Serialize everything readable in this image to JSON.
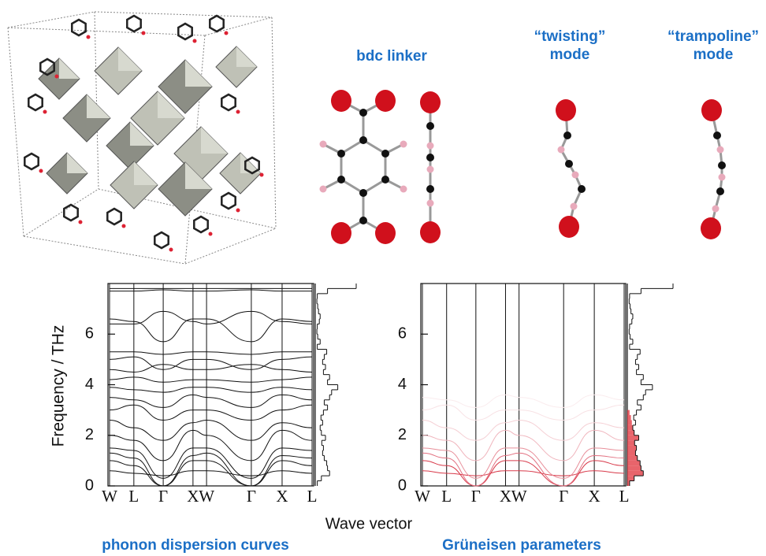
{
  "molecule_panel": {
    "linker_title": "bdc linker",
    "twisting_title": [
      "“twisting”",
      "mode"
    ],
    "trampoline_title": [
      "“trampoline”",
      "mode"
    ]
  },
  "chart_data": [
    {
      "type": "line",
      "title": "phonon dispersion curves",
      "x_label": "Wave vector",
      "y_label": "Frequency / THz",
      "categories": [
        "W",
        "L",
        "Γ",
        "X",
        "W",
        "Γ",
        "X",
        "L"
      ],
      "ylim": [
        0,
        8
      ],
      "yticks": [
        0,
        2,
        4,
        6
      ],
      "series": [
        {
          "color": "#111111",
          "values": [
            1.0,
            0.8,
            0,
            1.0,
            1.0,
            0,
            1.0,
            0.8
          ]
        },
        {
          "color": "#111111",
          "values": [
            1.3,
            1.1,
            0,
            1.2,
            1.3,
            0,
            1.2,
            1.1
          ]
        },
        {
          "color": "#111111",
          "values": [
            1.5,
            1.4,
            0.3,
            1.5,
            1.5,
            0.3,
            1.5,
            1.4
          ]
        },
        {
          "color": "#111111",
          "values": [
            0.6,
            0.5,
            0.4,
            0.6,
            0.6,
            0.4,
            0.6,
            0.5
          ]
        },
        {
          "color": "#111111",
          "values": [
            2.0,
            1.8,
            1.0,
            2.2,
            2.0,
            1.0,
            2.2,
            1.8
          ]
        },
        {
          "color": "#111111",
          "values": [
            2.6,
            2.3,
            1.8,
            2.5,
            2.6,
            1.8,
            2.5,
            2.3
          ]
        },
        {
          "color": "#111111",
          "values": [
            3.0,
            3.2,
            2.6,
            3.0,
            3.0,
            2.6,
            3.0,
            3.2
          ]
        },
        {
          "color": "#111111",
          "values": [
            3.5,
            3.4,
            3.1,
            3.6,
            3.5,
            3.1,
            3.6,
            3.4
          ]
        },
        {
          "color": "#111111",
          "values": [
            3.9,
            3.8,
            3.7,
            3.9,
            3.9,
            3.7,
            3.9,
            3.8
          ]
        },
        {
          "color": "#111111",
          "values": [
            4.2,
            4.3,
            4.1,
            4.2,
            4.2,
            4.1,
            4.2,
            4.3
          ]
        },
        {
          "color": "#111111",
          "values": [
            4.6,
            4.5,
            4.8,
            4.6,
            4.6,
            4.8,
            4.6,
            4.5
          ]
        },
        {
          "color": "#111111",
          "values": [
            5.0,
            5.1,
            4.6,
            5.0,
            5.0,
            4.6,
            5.0,
            5.1
          ]
        },
        {
          "color": "#111111",
          "values": [
            5.3,
            5.3,
            5.2,
            5.3,
            5.3,
            5.2,
            5.3,
            5.3
          ]
        },
        {
          "color": "#111111",
          "values": [
            6.6,
            6.5,
            5.7,
            6.6,
            6.6,
            5.7,
            6.6,
            6.5
          ]
        },
        {
          "color": "#111111",
          "values": [
            6.4,
            6.4,
            6.9,
            6.5,
            6.4,
            6.9,
            6.5,
            6.4
          ]
        },
        {
          "color": "#111111",
          "values": [
            7.8,
            7.8,
            7.8,
            7.8,
            7.8,
            7.8,
            7.8,
            7.8
          ]
        },
        {
          "color": "#111111",
          "values": [
            7.7,
            7.7,
            7.75,
            7.7,
            7.7,
            7.75,
            7.7,
            7.7
          ]
        }
      ],
      "dos_bins": [
        0,
        0.2,
        0.4,
        0.6,
        0.8,
        1,
        1.2,
        1.4,
        1.6,
        1.8,
        2,
        2.2,
        2.4,
        2.6,
        2.8,
        3,
        3.2,
        3.4,
        3.6,
        3.8,
        4,
        4.2,
        4.4,
        4.6,
        4.8,
        5,
        5.2,
        5.4,
        5.6,
        5.8,
        6,
        6.2,
        6.4,
        6.6,
        6.8,
        7,
        7.2,
        7.4,
        7.6,
        7.8,
        8
      ],
      "dos_values": [
        0.05,
        0.15,
        0.35,
        0.3,
        0.28,
        0.22,
        0.18,
        0.2,
        0.16,
        0.25,
        0.15,
        0.12,
        0.18,
        0.14,
        0.2,
        0.3,
        0.22,
        0.35,
        0.4,
        0.55,
        0.3,
        0.35,
        0.2,
        0.25,
        0.18,
        0.22,
        0.28,
        0.05,
        0.12,
        0.06,
        0.04,
        0.05,
        0.1,
        0.12,
        0.08,
        0.06,
        0.04,
        0.05,
        0.3,
        1.0
      ]
    },
    {
      "type": "line",
      "title": "Grüneisen parameters",
      "categories": [
        "W",
        "L",
        "Γ",
        "X",
        "W",
        "Γ",
        "X",
        "L"
      ],
      "ylim": [
        0,
        8
      ],
      "yticks": [
        0,
        2,
        4,
        6
      ],
      "series": [
        {
          "color": "#d83a4a",
          "values": [
            1.0,
            0.8,
            0,
            1.0,
            1.0,
            0,
            1.0,
            0.8
          ]
        },
        {
          "color": "#d83a4a",
          "values": [
            0.6,
            0.5,
            0.4,
            0.6,
            0.6,
            0.4,
            0.6,
            0.5
          ]
        },
        {
          "color": "#e27080",
          "values": [
            1.3,
            1.1,
            0,
            1.2,
            1.3,
            0,
            1.2,
            1.1
          ]
        },
        {
          "color": "#e88f9a",
          "values": [
            1.5,
            1.4,
            0.3,
            1.5,
            1.5,
            0.3,
            1.5,
            1.4
          ]
        },
        {
          "color": "#f0b5bd",
          "values": [
            2.0,
            1.8,
            1.0,
            2.2,
            2.0,
            1.0,
            2.2,
            1.8
          ]
        },
        {
          "color": "#f5d0d5",
          "values": [
            2.6,
            2.3,
            1.8,
            2.5,
            2.6,
            1.8,
            2.5,
            2.3
          ]
        },
        {
          "color": "#f8e2e5",
          "values": [
            3.0,
            3.2,
            2.6,
            3.0,
            3.0,
            2.6,
            3.0,
            3.2
          ]
        },
        {
          "color": "#faecee",
          "values": [
            3.5,
            3.4,
            3.1,
            3.6,
            3.5,
            3.1,
            3.6,
            3.4
          ]
        }
      ],
      "dos_bins": [
        0,
        0.2,
        0.4,
        0.6,
        0.8,
        1,
        1.2,
        1.4,
        1.6,
        1.8,
        2,
        2.2,
        2.4,
        2.6,
        2.8,
        3,
        3.2,
        3.4,
        3.6,
        3.8,
        4,
        4.2,
        4.4,
        4.6,
        4.8,
        5,
        5.2,
        5.4,
        5.6,
        5.8,
        6,
        6.2,
        6.4,
        6.6,
        6.8,
        7,
        7.2,
        7.4,
        7.6,
        7.8,
        8
      ],
      "dos_values": [
        0.05,
        0.15,
        0.35,
        0.3,
        0.28,
        0.22,
        0.18,
        0.2,
        0.16,
        0.25,
        0.15,
        0.12,
        0.18,
        0.14,
        0.2,
        0.3,
        0.22,
        0.35,
        0.4,
        0.55,
        0.3,
        0.35,
        0.2,
        0.25,
        0.18,
        0.22,
        0.28,
        0.05,
        0.12,
        0.06,
        0.04,
        0.05,
        0.1,
        0.12,
        0.08,
        0.06,
        0.04,
        0.05,
        0.3,
        1.0
      ],
      "dos_fill_color": "#e0303a",
      "dos_weighted": [
        0.05,
        0.15,
        0.35,
        0.3,
        0.28,
        0.22,
        0.18,
        0.2,
        0.16,
        0.25,
        0.15,
        0.12,
        0.1,
        0.08,
        0.05,
        0,
        0,
        0,
        0,
        0,
        0,
        0,
        0,
        0,
        0,
        0,
        0,
        0,
        0,
        0,
        0,
        0,
        0,
        0,
        0,
        0,
        0,
        0,
        0,
        0
      ]
    }
  ]
}
